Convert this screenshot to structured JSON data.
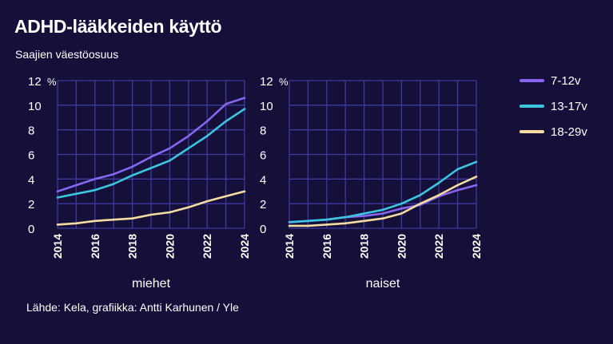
{
  "title": "ADHD-lääkkeiden käyttö",
  "subtitle": "Saajien väestöosuus",
  "source": "Lähde: Kela, grafiikka: Antti Karhunen / Yle",
  "colors": {
    "background": "#14103a",
    "grid": "#3e3a9e",
    "7-12v": "#8a66f0",
    "13-17v": "#3cc6e0",
    "18-29v": "#f6dca0"
  },
  "legend": [
    {
      "key": "7-12v",
      "label": "7-12v"
    },
    {
      "key": "13-17v",
      "label": "13-17v"
    },
    {
      "key": "18-29v",
      "label": "18-29v"
    }
  ],
  "chart_data": [
    {
      "type": "line",
      "label": "miehet",
      "unit": "%",
      "x": [
        2014,
        2015,
        2016,
        2017,
        2018,
        2019,
        2020,
        2021,
        2022,
        2023,
        2024
      ],
      "xticks": [
        "2014",
        "2016",
        "2018",
        "2020",
        "2022",
        "2024"
      ],
      "yticks": [
        "0",
        "2",
        "4",
        "6",
        "8",
        "10",
        "12"
      ],
      "ylim": [
        0,
        12
      ],
      "grid": true,
      "series": [
        {
          "name": "7-12v",
          "values": [
            3.0,
            3.5,
            4.0,
            4.4,
            5.0,
            5.8,
            6.5,
            7.5,
            8.7,
            10.1,
            10.6
          ]
        },
        {
          "name": "13-17v",
          "values": [
            2.5,
            2.8,
            3.1,
            3.6,
            4.3,
            4.9,
            5.5,
            6.5,
            7.5,
            8.7,
            9.7
          ]
        },
        {
          "name": "18-29v",
          "values": [
            0.3,
            0.4,
            0.6,
            0.7,
            0.8,
            1.1,
            1.3,
            1.7,
            2.2,
            2.6,
            3.0
          ]
        }
      ]
    },
    {
      "type": "line",
      "label": "naiset",
      "unit": "%",
      "x": [
        2014,
        2015,
        2016,
        2017,
        2018,
        2019,
        2020,
        2021,
        2022,
        2023,
        2024
      ],
      "xticks": [
        "2014",
        "2016",
        "2018",
        "2020",
        "2022",
        "2024"
      ],
      "yticks": [
        "0",
        "2",
        "4",
        "6",
        "8",
        "10",
        "12"
      ],
      "ylim": [
        0,
        12
      ],
      "grid": true,
      "series": [
        {
          "name": "7-12v",
          "values": [
            0.5,
            0.6,
            0.7,
            0.9,
            1.0,
            1.2,
            1.6,
            1.9,
            2.6,
            3.1,
            3.5
          ]
        },
        {
          "name": "13-17v",
          "values": [
            0.5,
            0.6,
            0.7,
            0.9,
            1.2,
            1.5,
            2.0,
            2.7,
            3.7,
            4.8,
            5.4
          ]
        },
        {
          "name": "18-29v",
          "values": [
            0.2,
            0.2,
            0.3,
            0.4,
            0.6,
            0.8,
            1.2,
            2.0,
            2.7,
            3.5,
            4.2
          ]
        }
      ]
    }
  ]
}
